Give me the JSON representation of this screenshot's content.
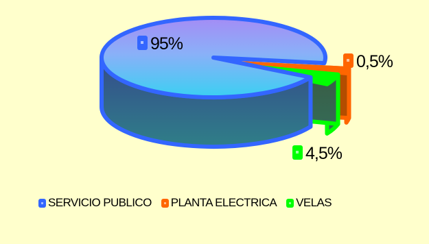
{
  "chart_data": {
    "type": "pie",
    "style": "3d",
    "categories": [
      "SERVICIO PUBLICO",
      "PLANTA ELECTRICA",
      "VELAS"
    ],
    "values": [
      95,
      0.5,
      4.5
    ],
    "data_labels": [
      "95%",
      "0,5%",
      "4,5%"
    ],
    "colors": [
      "#3366ff",
      "#ff6600",
      "#00ff00"
    ],
    "legend_position": "bottom",
    "title": ""
  },
  "legend": {
    "items": [
      {
        "label": "SERVICIO PUBLICO",
        "color": "#3366ff"
      },
      {
        "label": "PLANTA ELECTRICA",
        "color": "#ff6600"
      },
      {
        "label": "VELAS",
        "color": "#00ff00"
      }
    ]
  },
  "colors": {
    "background": "#ffffcc"
  }
}
